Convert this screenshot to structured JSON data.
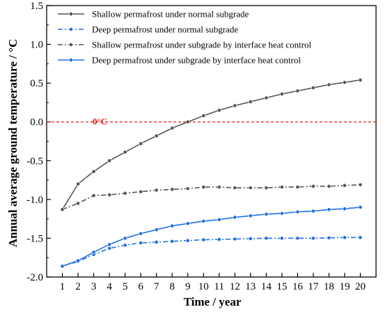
{
  "chart_data": {
    "type": "line",
    "xlabel": "Time / year",
    "ylabel": "Annual average ground temperature / °C",
    "xlim": [
      0,
      21
    ],
    "ylim": [
      -2.0,
      1.5
    ],
    "x": [
      1,
      2,
      3,
      4,
      5,
      6,
      7,
      8,
      9,
      10,
      11,
      12,
      13,
      14,
      15,
      16,
      17,
      18,
      19,
      20
    ],
    "x_ticks": [
      "1",
      "2",
      "3",
      "4",
      "5",
      "6",
      "7",
      "8",
      "9",
      "10",
      "11",
      "12",
      "13",
      "14",
      "15",
      "16",
      "17",
      "18",
      "19",
      "20"
    ],
    "y_ticks": [
      "-2.0",
      "-1.5",
      "-1.0",
      "-0.5",
      "0.0",
      "0.5",
      "1.0",
      "1.5"
    ],
    "y_tick_values": [
      -2.0,
      -1.5,
      -1.0,
      -0.5,
      0.0,
      0.5,
      1.0,
      1.5
    ],
    "reference_line": {
      "y": 0.0,
      "label": "0°C",
      "color": "#e0201b"
    },
    "legend_position": "top-left",
    "series": [
      {
        "name": "Shallow permafrost under normal subgrade",
        "color": "#555555",
        "line_style": "solid",
        "values": [
          -1.13,
          -0.8,
          -0.64,
          -0.5,
          -0.39,
          -0.28,
          -0.18,
          -0.08,
          0.0,
          0.08,
          0.15,
          0.21,
          0.26,
          0.31,
          0.36,
          0.4,
          0.44,
          0.48,
          0.51,
          0.54
        ]
      },
      {
        "name": "Deep permafrost under normal subgrade",
        "color": "#1f6fe0",
        "line_style": "dashdot",
        "values": [
          -1.86,
          -1.8,
          -1.71,
          -1.63,
          -1.59,
          -1.56,
          -1.55,
          -1.54,
          -1.53,
          -1.52,
          -1.515,
          -1.51,
          -1.505,
          -1.5,
          -1.5,
          -1.5,
          -1.5,
          -1.495,
          -1.49,
          -1.49
        ]
      },
      {
        "name": "Shallow permafrost under subgrade by interface heat control",
        "color": "#555555",
        "line_style": "dashdot",
        "values": [
          -1.13,
          -1.05,
          -0.95,
          -0.94,
          -0.92,
          -0.9,
          -0.88,
          -0.87,
          -0.86,
          -0.84,
          -0.84,
          -0.85,
          -0.85,
          -0.85,
          -0.84,
          -0.84,
          -0.83,
          -0.83,
          -0.82,
          -0.81
        ]
      },
      {
        "name": "Deep permafrost under subgrade by interface heat control",
        "color": "#1f6fe0",
        "line_style": "solid",
        "values": [
          -1.86,
          -1.79,
          -1.68,
          -1.58,
          -1.5,
          -1.44,
          -1.39,
          -1.34,
          -1.31,
          -1.28,
          -1.26,
          -1.23,
          -1.21,
          -1.19,
          -1.18,
          -1.16,
          -1.15,
          -1.13,
          -1.12,
          -1.1
        ]
      }
    ]
  }
}
